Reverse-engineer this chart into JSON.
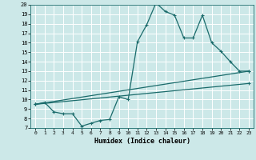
{
  "xlabel": "Humidex (Indice chaleur)",
  "bg_color": "#cce8e8",
  "grid_color": "#ffffff",
  "line_color": "#1a6b6b",
  "xlim": [
    -0.5,
    23.5
  ],
  "ylim": [
    7,
    20
  ],
  "xticks": [
    0,
    1,
    2,
    3,
    4,
    5,
    6,
    7,
    8,
    9,
    10,
    11,
    12,
    13,
    14,
    15,
    16,
    17,
    18,
    19,
    20,
    21,
    22,
    23
  ],
  "yticks": [
    7,
    8,
    9,
    10,
    11,
    12,
    13,
    14,
    15,
    16,
    17,
    18,
    19,
    20
  ],
  "line1_x": [
    0,
    1,
    2,
    3,
    4,
    5,
    6,
    7,
    8,
    9,
    10,
    11,
    12,
    13,
    14,
    15,
    16,
    17,
    18,
    19,
    20,
    21,
    22,
    23
  ],
  "line1_y": [
    9.5,
    9.7,
    8.7,
    8.5,
    8.5,
    7.2,
    7.5,
    7.8,
    7.9,
    10.3,
    10.0,
    16.1,
    17.9,
    20.2,
    19.3,
    18.9,
    16.5,
    16.5,
    18.9,
    16.0,
    15.1,
    14.0,
    13.0,
    13.0
  ],
  "line2_x": [
    0,
    23
  ],
  "line2_y": [
    9.5,
    13.0
  ],
  "line3_x": [
    0,
    23
  ],
  "line3_y": [
    9.5,
    11.7
  ]
}
